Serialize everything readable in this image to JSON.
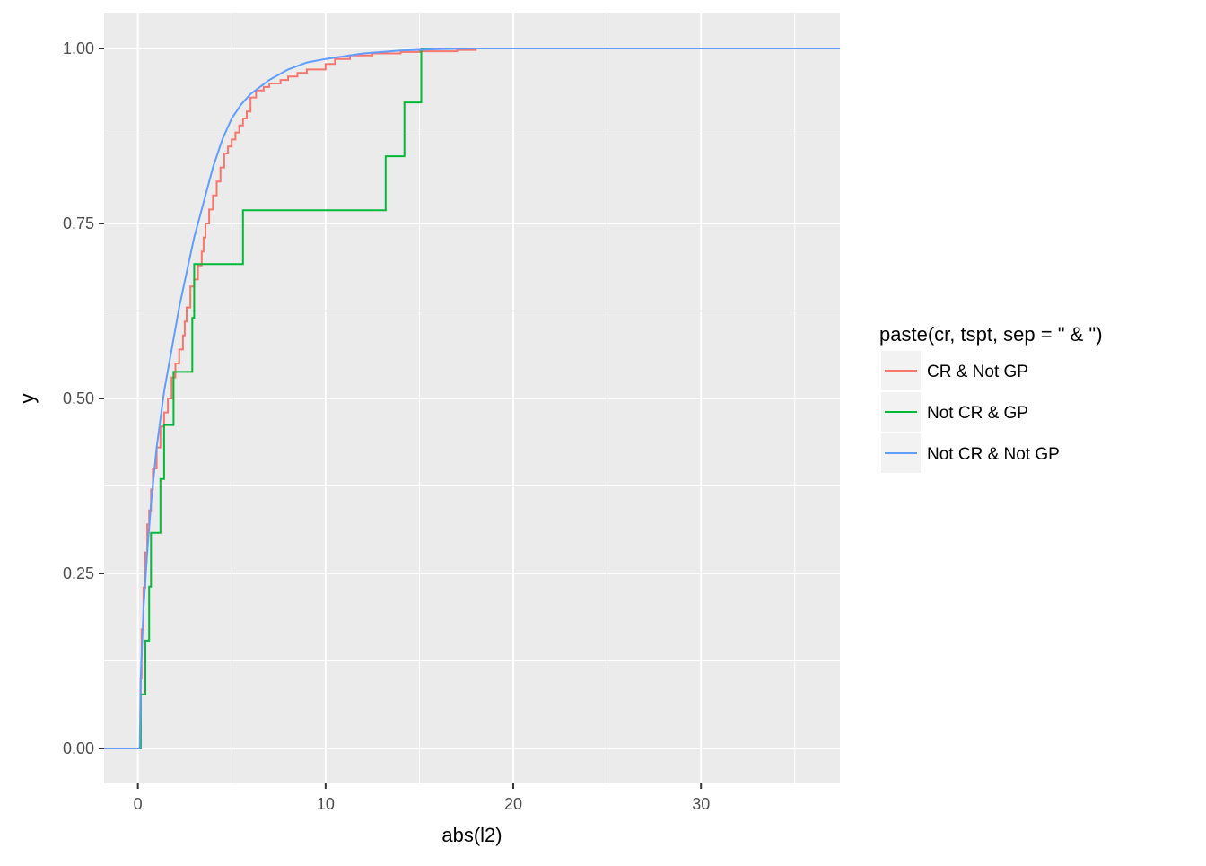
{
  "chart_data": {
    "type": "line",
    "xlabel": "abs(l2)",
    "ylabel": "y",
    "xlim": [
      -1.8,
      37.4
    ],
    "ylim": [
      -0.05,
      1.05
    ],
    "x_ticks": [
      0,
      10,
      20,
      30
    ],
    "x_tick_labels": [
      "0",
      "10",
      "20",
      "30"
    ],
    "y_ticks": [
      0,
      0.25,
      0.5,
      0.75,
      1.0
    ],
    "y_tick_labels": [
      "0.00",
      "0.25",
      "0.50",
      "0.75",
      "1.00"
    ],
    "grid": true,
    "legend": {
      "title": "paste(cr, tspt, sep = \" & \")",
      "position": "right"
    },
    "series": [
      {
        "name": "CR & Not GP",
        "color": "#F8766D",
        "step": true,
        "points": [
          [
            -1.8,
            0
          ],
          [
            0.1,
            0
          ],
          [
            0.15,
            0.1
          ],
          [
            0.2,
            0.17
          ],
          [
            0.3,
            0.23
          ],
          [
            0.4,
            0.28
          ],
          [
            0.5,
            0.32
          ],
          [
            0.6,
            0.34
          ],
          [
            0.7,
            0.37
          ],
          [
            0.8,
            0.4
          ],
          [
            1.0,
            0.43
          ],
          [
            1.2,
            0.46
          ],
          [
            1.4,
            0.48
          ],
          [
            1.6,
            0.5
          ],
          [
            1.8,
            0.53
          ],
          [
            2.0,
            0.55
          ],
          [
            2.2,
            0.57
          ],
          [
            2.4,
            0.59
          ],
          [
            2.5,
            0.61
          ],
          [
            2.6,
            0.63
          ],
          [
            2.8,
            0.66
          ],
          [
            3.0,
            0.67
          ],
          [
            3.2,
            0.69
          ],
          [
            3.4,
            0.71
          ],
          [
            3.5,
            0.73
          ],
          [
            3.6,
            0.75
          ],
          [
            3.8,
            0.77
          ],
          [
            4.0,
            0.79
          ],
          [
            4.2,
            0.81
          ],
          [
            4.4,
            0.83
          ],
          [
            4.6,
            0.85
          ],
          [
            4.8,
            0.86
          ],
          [
            5.0,
            0.87
          ],
          [
            5.2,
            0.88
          ],
          [
            5.4,
            0.89
          ],
          [
            5.6,
            0.9
          ],
          [
            5.8,
            0.91
          ],
          [
            6.0,
            0.93
          ],
          [
            6.3,
            0.94
          ],
          [
            6.7,
            0.945
          ],
          [
            7.0,
            0.95
          ],
          [
            7.6,
            0.955
          ],
          [
            8.0,
            0.96
          ],
          [
            8.5,
            0.965
          ],
          [
            9.0,
            0.97
          ],
          [
            10.0,
            0.978
          ],
          [
            10.5,
            0.985
          ],
          [
            11.3,
            0.99
          ],
          [
            12.5,
            0.993
          ],
          [
            14.0,
            0.995
          ],
          [
            15.0,
            0.996
          ],
          [
            17.0,
            0.998
          ],
          [
            18.0,
            1.0
          ],
          [
            37.4,
            1.0
          ]
        ]
      },
      {
        "name": "Not CR & GP",
        "color": "#00BA38",
        "step": true,
        "points": [
          [
            -1.8,
            0
          ],
          [
            0.1,
            0
          ],
          [
            0.15,
            0.077
          ],
          [
            0.4,
            0.154
          ],
          [
            0.6,
            0.231
          ],
          [
            0.7,
            0.308
          ],
          [
            1.2,
            0.385
          ],
          [
            1.4,
            0.462
          ],
          [
            1.9,
            0.538
          ],
          [
            2.9,
            0.615
          ],
          [
            3.0,
            0.692
          ],
          [
            5.6,
            0.769
          ],
          [
            13.2,
            0.846
          ],
          [
            14.2,
            0.923
          ],
          [
            15.1,
            1.0
          ],
          [
            37.4,
            1.0
          ]
        ]
      },
      {
        "name": "Not CR & Not GP",
        "color": "#619CFF",
        "step": false,
        "points": [
          [
            -1.8,
            0
          ],
          [
            0.1,
            0
          ],
          [
            0.15,
            0.1
          ],
          [
            0.3,
            0.2
          ],
          [
            0.5,
            0.28
          ],
          [
            0.7,
            0.35
          ],
          [
            1.0,
            0.43
          ],
          [
            1.4,
            0.51
          ],
          [
            1.8,
            0.57
          ],
          [
            2.2,
            0.63
          ],
          [
            2.6,
            0.68
          ],
          [
            3.0,
            0.73
          ],
          [
            3.5,
            0.78
          ],
          [
            4.0,
            0.83
          ],
          [
            4.5,
            0.87
          ],
          [
            5.0,
            0.9
          ],
          [
            5.5,
            0.92
          ],
          [
            6.0,
            0.935
          ],
          [
            7.0,
            0.955
          ],
          [
            8.0,
            0.97
          ],
          [
            9.0,
            0.98
          ],
          [
            10.0,
            0.985
          ],
          [
            12.0,
            0.993
          ],
          [
            14.0,
            0.997
          ],
          [
            16.0,
            0.999
          ],
          [
            18.0,
            1.0
          ],
          [
            37.4,
            1.0
          ]
        ]
      }
    ]
  }
}
